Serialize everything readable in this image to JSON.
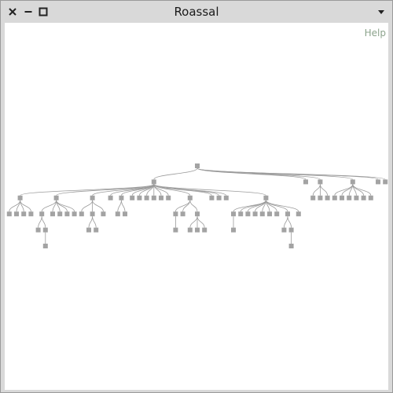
{
  "window": {
    "title": "Roassal"
  },
  "canvas": {
    "help_label": "Help"
  },
  "icons": {
    "close": "close-icon",
    "minimize": "minimize-icon",
    "maximize": "maximize-icon",
    "menu": "chevron-down-icon"
  },
  "colors": {
    "node": "#a3a3a3",
    "edge": "#9b9b9b",
    "help": "#8ca38c"
  },
  "tree": {
    "children": [
      {
        "children": [
          {
            "children": [
              {},
              {},
              {},
              {}
            ]
          },
          {
            "children": [
              {
                "children": [
                  {},
                  {
                    "children": [
                      {}
                    ]
                  }
                ]
              },
              {},
              {},
              {},
              {}
            ]
          },
          {
            "children": [
              {},
              {
                "children": [
                  {},
                  {}
                ]
              },
              {}
            ]
          },
          {},
          {
            "children": [
              {},
              {}
            ]
          },
          {},
          {},
          {},
          {},
          {},
          {},
          {
            "children": [
              {
                "children": [
                  {}
                ]
              },
              {},
              {
                "children": [
                  {},
                  {},
                  {}
                ]
              }
            ]
          },
          {},
          {},
          {},
          {
            "children": [
              {
                "children": [
                  {}
                ]
              },
              {},
              {},
              {},
              {},
              {},
              {},
              {
                "children": [
                  {},
                  {
                    "children": [
                      {}
                    ]
                  }
                ]
              },
              {}
            ]
          }
        ]
      },
      {},
      {
        "children": [
          {},
          {},
          {}
        ]
      },
      {
        "children": [
          {},
          {},
          {},
          {},
          {},
          {}
        ]
      },
      {},
      {}
    ]
  }
}
